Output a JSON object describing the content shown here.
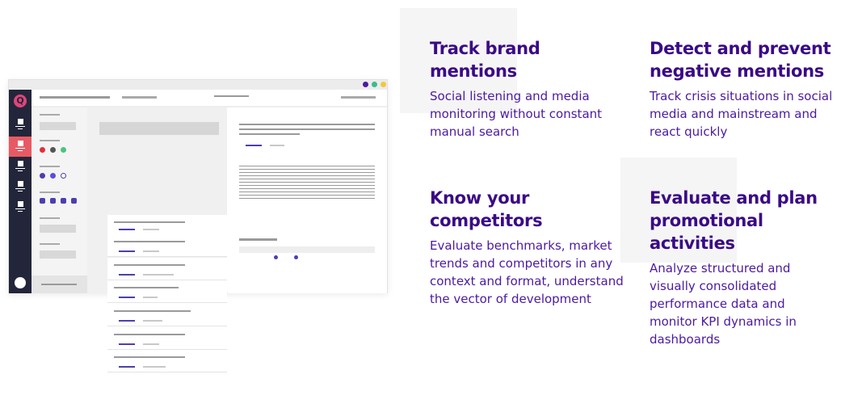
{
  "features": [
    {
      "title": "Track brand mentions",
      "description": "Social listening and media monitoring without constant manual search"
    },
    {
      "title": "Detect and prevent negative mentions",
      "description": "Track crisis situations in social media and mainstream and react quickly"
    },
    {
      "title": "Know your competitors",
      "description": "Evaluate benchmarks, market trends and competitors in any context and format, understand the vector of development"
    },
    {
      "title": "Evaluate and plan promotional activities",
      "description": "Analyze structured and visually consolidated performance data and monitor KPI dynamics in dashboards"
    }
  ],
  "mockup": {
    "logo_letter": "Q",
    "window_dots": [
      "#4b1aa0",
      "#3dbb8a",
      "#f2c740"
    ],
    "accent": "#e85a63",
    "sidebar_bg": "#23263a",
    "filter_dots": [
      [
        "#e0303c",
        "#555",
        "#4cc47c"
      ],
      [
        "#4b3fb0",
        "#5a4ee0",
        "outline"
      ]
    ],
    "icons": [
      "home-icon",
      "list-icon",
      "list-icon",
      "list-icon",
      "list-icon",
      "user-icon"
    ]
  }
}
